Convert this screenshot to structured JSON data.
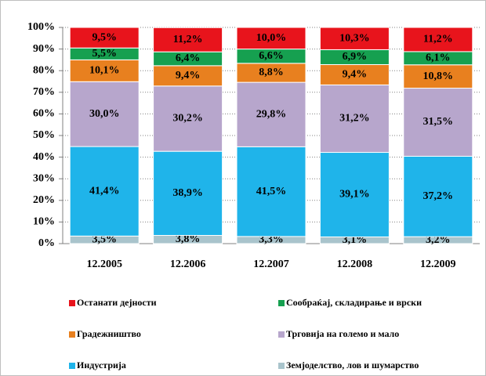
{
  "chart_data": {
    "type": "stacked-bar",
    "categories": [
      "12.2005",
      "12.2006",
      "12.2007",
      "12.2008",
      "12.2009"
    ],
    "series": [
      {
        "name": "Земјоделство, лов и шумарство",
        "color": "#a9c4cc",
        "values": [
          3.5,
          3.8,
          3.3,
          3.1,
          3.2
        ],
        "value_labels": [
          "3,5%",
          "3,8%",
          "3,3%",
          "3,1%",
          "3,2%"
        ]
      },
      {
        "name": "Индустрија",
        "color": "#1fb4ea",
        "values": [
          41.4,
          38.9,
          41.5,
          39.1,
          37.2
        ],
        "value_labels": [
          "41,4%",
          "38,9%",
          "41,5%",
          "39,1%",
          "37,2%"
        ]
      },
      {
        "name": "Трговија на големо и мало",
        "color": "#b7a6cc",
        "values": [
          30.0,
          30.2,
          29.8,
          31.2,
          31.5
        ],
        "value_labels": [
          "30,0%",
          "30,2%",
          "29,8%",
          "31,2%",
          "31,5%"
        ]
      },
      {
        "name": "Градежништво",
        "color": "#e8801f",
        "values": [
          10.1,
          9.4,
          8.8,
          9.4,
          10.8
        ],
        "value_labels": [
          "10,1%",
          "9,4%",
          "8,8%",
          "9,4%",
          "10,8%"
        ]
      },
      {
        "name": "Сообраќај, складирање и врски",
        "color": "#16a050",
        "values": [
          5.5,
          6.4,
          6.6,
          6.9,
          6.1
        ],
        "value_labels": [
          "5,5%",
          "6,4%",
          "6,6%",
          "6,9%",
          "6,1%"
        ]
      },
      {
        "name": "Останати дејности",
        "color": "#e8141c",
        "values": [
          9.5,
          11.2,
          10.0,
          10.3,
          11.2
        ],
        "value_labels": [
          "9,5%",
          "11,2%",
          "10,0%",
          "10,3%",
          "11,2%"
        ]
      }
    ],
    "ylim": [
      0,
      100
    ],
    "yticks": [
      {
        "value": 0,
        "label": "0%"
      },
      {
        "value": 10,
        "label": "10%"
      },
      {
        "value": 20,
        "label": "20%"
      },
      {
        "value": 30,
        "label": "30%"
      },
      {
        "value": 40,
        "label": "40%"
      },
      {
        "value": 50,
        "label": "50%"
      },
      {
        "value": 60,
        "label": "60%"
      },
      {
        "value": 70,
        "label": "70%"
      },
      {
        "value": 80,
        "label": "80%"
      },
      {
        "value": 90,
        "label": "90%"
      },
      {
        "value": 100,
        "label": "100%"
      }
    ],
    "grid": true
  }
}
